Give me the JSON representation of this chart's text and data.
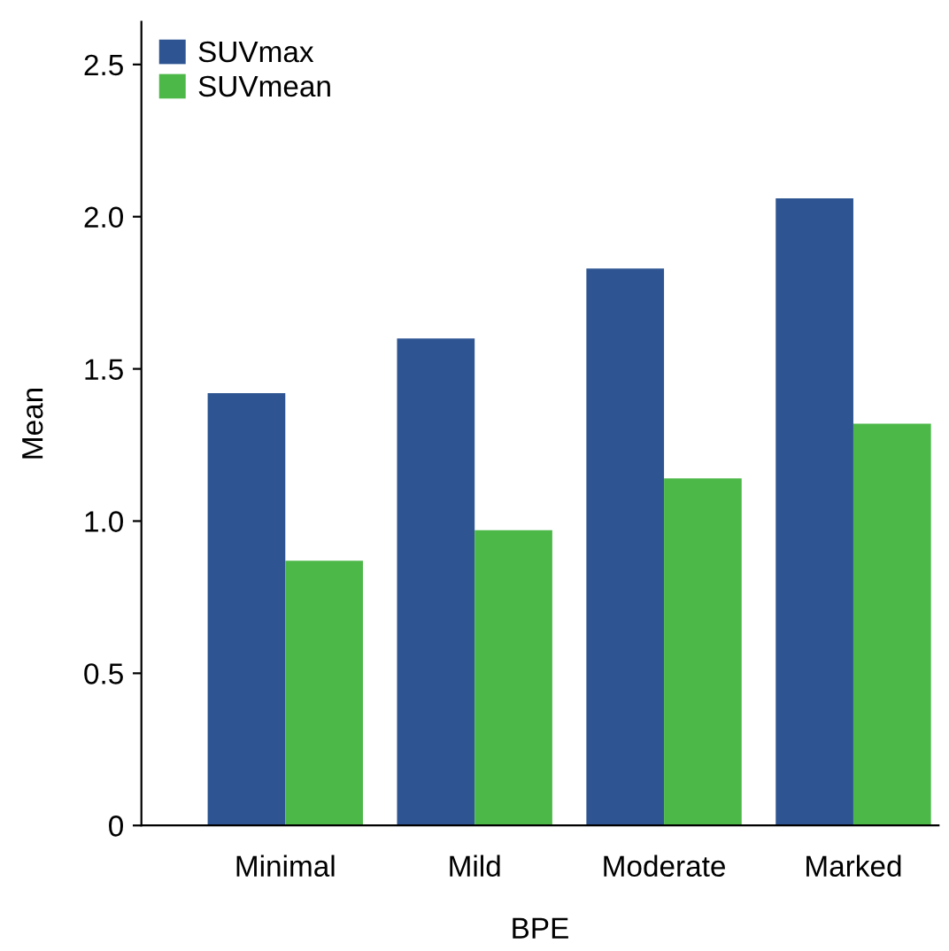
{
  "chart_data": {
    "type": "bar",
    "xlabel": "BPE",
    "ylabel": "Mean",
    "categories": [
      "Minimal",
      "Mild",
      "Moderate",
      "Marked"
    ],
    "series": [
      {
        "name": "SUVmax",
        "color": "#2e5592",
        "values": [
          1.42,
          1.6,
          1.83,
          2.06
        ]
      },
      {
        "name": "SUVmean",
        "color": "#4cb848",
        "values": [
          0.87,
          0.97,
          1.14,
          1.32
        ]
      }
    ],
    "ylim": [
      0,
      2.64
    ],
    "yticks": [
      0,
      {
        "value": 0.5,
        "label": "0.5"
      },
      {
        "value": 1.0,
        "label": "1.0"
      },
      {
        "value": 1.5,
        "label": "1.5"
      },
      {
        "value": 2.0,
        "label": "2.0"
      },
      {
        "value": 2.5,
        "label": "2.5"
      }
    ],
    "grid": false,
    "legend": "top left"
  }
}
